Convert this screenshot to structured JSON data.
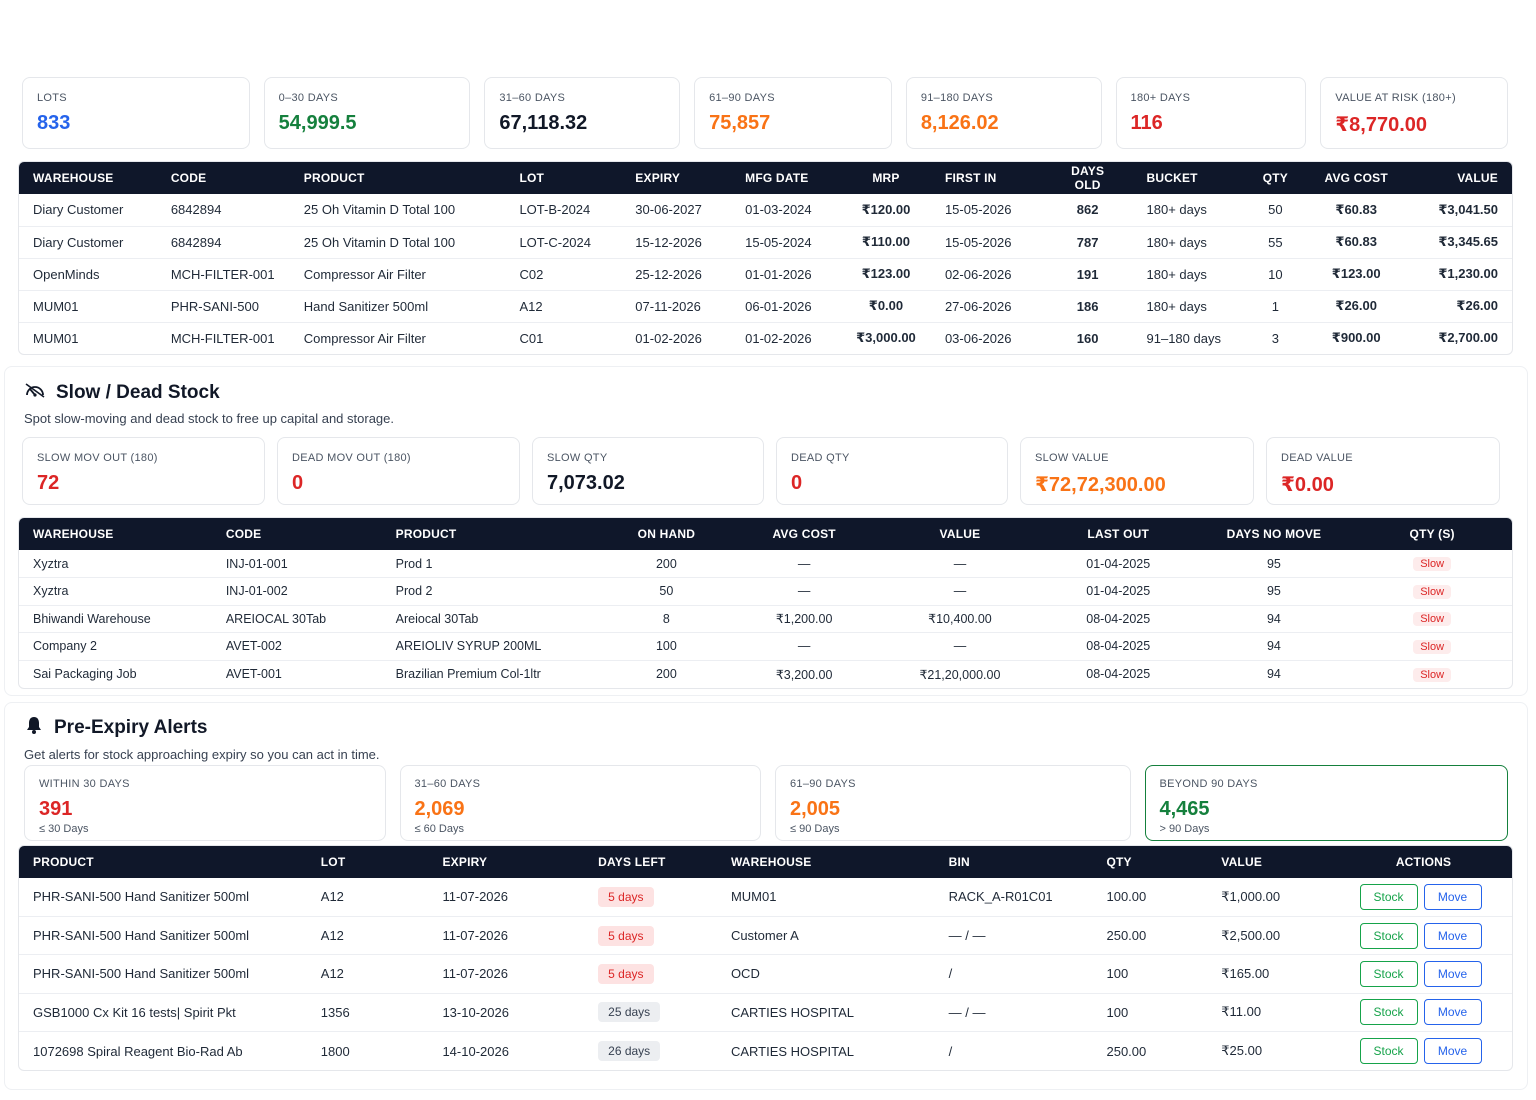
{
  "colors": {
    "blue": "#2563eb",
    "green": "#15803d",
    "orange": "#f97316",
    "red": "#dc2626",
    "dark": "#111827",
    "header": "#0f172a"
  },
  "aging": {
    "kpis": [
      {
        "label": "LOTS",
        "value": "833",
        "color": "#2563eb"
      },
      {
        "label": "0–30 DAYS",
        "value": "54,999.5",
        "color": "#15803d"
      },
      {
        "label": "31–60 DAYS",
        "value": "67,118.32",
        "color": "#111827"
      },
      {
        "label": "61–90 DAYS",
        "value": "75,857",
        "color": "#f97316"
      },
      {
        "label": "91–180 DAYS",
        "value": "8,126.02",
        "color": "#f97316"
      },
      {
        "label": "180+ DAYS",
        "value": "116",
        "color": "#dc2626"
      },
      {
        "label": "VALUE AT RISK (180+)",
        "value": "₹8,770.00",
        "color": "#dc2626"
      }
    ],
    "columns": [
      "WAREHOUSE",
      "CODE",
      "PRODUCT",
      "LOT",
      "EXPIRY",
      "MFG DATE",
      "MRP",
      "FIRST IN",
      "DAYS OLD",
      "BUCKET",
      "QTY",
      "AVG COST",
      "VALUE"
    ],
    "rows": [
      [
        "Diary Customer",
        "6842894",
        "25 Oh Vitamin D Total 100",
        "LOT-B-2024",
        "30-06-2027",
        "01-03-2024",
        "₹120.00",
        "15-05-2026",
        "862",
        "180+ days",
        "50",
        "₹60.83",
        "₹3,041.50"
      ],
      [
        "Diary Customer",
        "6842894",
        "25 Oh Vitamin D Total 100",
        "LOT-C-2024",
        "15-12-2026",
        "15-05-2024",
        "₹110.00",
        "15-05-2026",
        "787",
        "180+ days",
        "55",
        "₹60.83",
        "₹3,345.65"
      ],
      [
        "OpenMinds",
        "MCH-FILTER-001",
        "Compressor Air Filter",
        "C02",
        "25-12-2026",
        "01-01-2026",
        "₹123.00",
        "02-06-2026",
        "191",
        "180+ days",
        "10",
        "₹123.00",
        "₹1,230.00"
      ],
      [
        "MUM01",
        "PHR-SANI-500",
        "Hand Sanitizer 500ml",
        "A12",
        "07-11-2026",
        "06-01-2026",
        "₹0.00",
        "27-06-2026",
        "186",
        "180+ days",
        "1",
        "₹26.00",
        "₹26.00"
      ],
      [
        "MUM01",
        "MCH-FILTER-001",
        "Compressor Air Filter",
        "C01",
        "01-02-2026",
        "01-02-2026",
        "₹3,000.00",
        "03-06-2026",
        "160",
        "91–180 days",
        "3",
        "₹900.00",
        "₹2,700.00"
      ]
    ]
  },
  "slow": {
    "icon": "slow-stock-icon",
    "title": "Slow / Dead Stock",
    "description": "Spot slow-moving and dead stock to free up capital and storage.",
    "kpis": [
      {
        "label": "SLOW MOV OUT (180)",
        "value": "72",
        "color": "#dc2626"
      },
      {
        "label": "DEAD MOV OUT (180)",
        "value": "0",
        "color": "#dc2626"
      },
      {
        "label": "SLOW QTY",
        "value": "7,073.02",
        "color": "#111827"
      },
      {
        "label": "DEAD QTY",
        "value": "0",
        "color": "#dc2626"
      },
      {
        "label": "SLOW VALUE",
        "value": "₹72,72,300.00",
        "color": "#f97316"
      },
      {
        "label": "DEAD VALUE",
        "value": "₹0.00",
        "color": "#dc2626"
      }
    ],
    "columns": [
      "WAREHOUSE",
      "CODE",
      "PRODUCT",
      "ON HAND",
      "AVG COST",
      "VALUE",
      "LAST OUT",
      "DAYS NO MOVE",
      "QTY (S)"
    ],
    "rows": [
      [
        "Xyztra",
        "INJ-01-001",
        "Prod 1",
        "200",
        "—",
        "—",
        "01-04-2025",
        "95",
        "Slow"
      ],
      [
        "Xyztra",
        "INJ-01-002",
        "Prod 2",
        "50",
        "—",
        "—",
        "01-04-2025",
        "95",
        "Slow"
      ],
      [
        "Bhiwandi Warehouse",
        "AREIOCAL 30Tab",
        "Areiocal 30Tab",
        "8",
        "₹1,200.00",
        "₹10,400.00",
        "08-04-2025",
        "94",
        "Slow"
      ],
      [
        "Company 2",
        "AVET-002",
        "AREIOLIV SYRUP 200ML",
        "100",
        "—",
        "—",
        "08-04-2025",
        "94",
        "Slow"
      ],
      [
        "Sai Packaging Job",
        "AVET-001",
        "Brazilian Premium Col-1ltr",
        "200",
        "₹3,200.00",
        "₹21,20,000.00",
        "08-04-2025",
        "94",
        "Slow"
      ]
    ]
  },
  "expiry": {
    "icon": "bell-icon",
    "title": "Pre-Expiry Alerts",
    "description": "Get alerts for stock approaching expiry so you can act in time.",
    "kpis": [
      {
        "label": "WITHIN 30 DAYS",
        "value": "391",
        "sub": "≤ 30 Days",
        "color": "#dc2626"
      },
      {
        "label": "31–60 DAYS",
        "value": "2,069",
        "sub": "≤ 60 Days",
        "color": "#f97316"
      },
      {
        "label": "61–90 DAYS",
        "value": "2,005",
        "sub": "≤ 90 Days",
        "color": "#f97316"
      },
      {
        "label": "BEYOND 90 DAYS",
        "value": "4,465",
        "sub": "> 90 Days",
        "color": "#15803d"
      }
    ],
    "columns": [
      "PRODUCT",
      "LOT",
      "EXPIRY",
      "DAYS LEFT",
      "WAREHOUSE",
      "BIN",
      "QTY",
      "VALUE",
      "ACTIONS"
    ],
    "actions": {
      "stock": "Stock",
      "move": "Move"
    },
    "rows": [
      {
        "product": "PHR-SANI-500 Hand Sanitizer 500ml",
        "lot": "A12",
        "expiry": "11-07-2026",
        "days": "5 days",
        "urgent": true,
        "warehouse": "MUM01",
        "bin": "RACK_A-R01C01",
        "qty": "100.00",
        "value": "₹1,000.00"
      },
      {
        "product": "PHR-SANI-500 Hand Sanitizer 500ml",
        "lot": "A12",
        "expiry": "11-07-2026",
        "days": "5 days",
        "urgent": true,
        "warehouse": "Customer A",
        "bin": "— / —",
        "qty": "250.00",
        "value": "₹2,500.00"
      },
      {
        "product": "PHR-SANI-500 Hand Sanitizer 500ml",
        "lot": "A12",
        "expiry": "11-07-2026",
        "days": "5 days",
        "urgent": true,
        "warehouse": "OCD",
        "bin": "/",
        "qty": "100",
        "value": "₹165.00"
      },
      {
        "product": "GSB1000 Cx Kit 16 tests| Spirit Pkt",
        "lot": "1356",
        "expiry": "13-10-2026",
        "days": "25 days",
        "urgent": false,
        "warehouse": "CARTIES HOSPITAL",
        "bin": "— / —",
        "qty": "100",
        "value": "₹11.00"
      },
      {
        "product": "1072698 Spiral Reagent Bio-Rad Ab",
        "lot": "1800",
        "expiry": "14-10-2026",
        "days": "26 days",
        "urgent": false,
        "warehouse": "CARTIES HOSPITAL",
        "bin": "/",
        "qty": "250.00",
        "value": "₹25.00"
      }
    ]
  }
}
